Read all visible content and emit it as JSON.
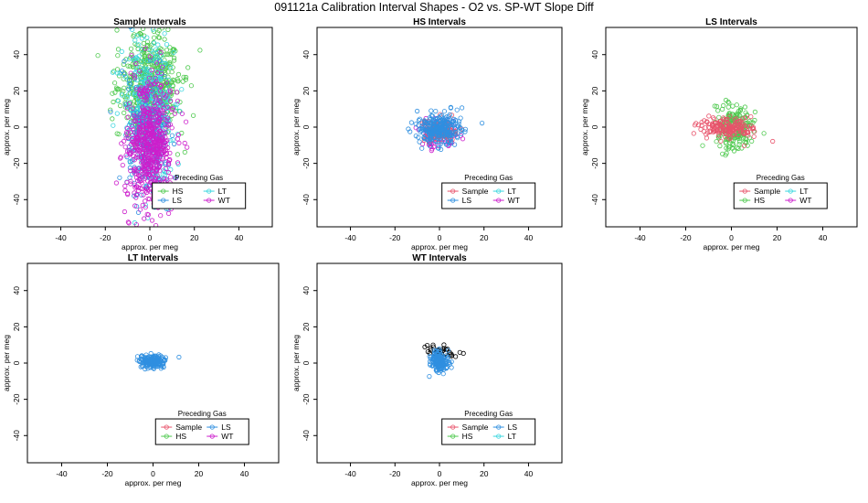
{
  "figure": {
    "title": "091121a   Calibration Interval Shapes - O2 vs. SP-WT Slope Diff"
  },
  "colors": {
    "Sample": "#e8536b",
    "HS": "#4ec94e",
    "LS": "#2f8fe0",
    "LT": "#3ad6df",
    "WT": "#cc1fcc",
    "axis": "#000000"
  },
  "chart_data": [
    {
      "type": "scatter",
      "title": "Sample Intervals",
      "xlabel": "approx. per meg",
      "ylabel": "approx. per meg",
      "xlim": [
        -55,
        55
      ],
      "ylim": [
        -55,
        55
      ],
      "xticks": [
        -40,
        -20,
        0,
        20,
        40
      ],
      "yticks": [
        -40,
        -20,
        0,
        20,
        40
      ],
      "legend": {
        "title": "Preceding Gas",
        "placement": "bottom-right",
        "entries": [
          "HS",
          "LT",
          "LS",
          "WT"
        ]
      },
      "series": [
        {
          "name": "HS",
          "color_key": "HS",
          "n": 520,
          "center": [
            0,
            22
          ],
          "spread": [
            7,
            14
          ],
          "ymax": 55
        },
        {
          "name": "LT",
          "color_key": "LT",
          "n": 380,
          "center": [
            0,
            8
          ],
          "spread": [
            6,
            18
          ]
        },
        {
          "name": "LS",
          "color_key": "LS",
          "n": 200,
          "center": [
            -1,
            -8
          ],
          "spread": [
            5,
            18
          ]
        },
        {
          "name": "WT",
          "color_key": "WT",
          "n": 620,
          "center": [
            0,
            -10
          ],
          "spread": [
            5,
            18
          ],
          "ymin": -55
        }
      ]
    },
    {
      "type": "scatter",
      "title": "HS Intervals",
      "xlabel": "approx. per meg",
      "ylabel": "approx. per meg",
      "xlim": [
        -55,
        55
      ],
      "ylim": [
        -55,
        55
      ],
      "xticks": [
        -40,
        -20,
        0,
        20,
        40
      ],
      "yticks": [
        -40,
        -20,
        0,
        20,
        40
      ],
      "legend": {
        "title": "Preceding Gas",
        "placement": "bottom-right",
        "entries": [
          "Sample",
          "LT",
          "LS",
          "WT"
        ]
      },
      "series": [
        {
          "name": "WT",
          "color_key": "WT",
          "n": 90,
          "center": [
            0,
            -4
          ],
          "spread": [
            4,
            3.5
          ]
        },
        {
          "name": "Sample",
          "color_key": "Sample",
          "n": 130,
          "center": [
            0,
            -2
          ],
          "spread": [
            4,
            3.5
          ]
        },
        {
          "name": "LS",
          "color_key": "LS",
          "n": 260,
          "center": [
            0,
            -1
          ],
          "spread": [
            5,
            4
          ]
        }
      ]
    },
    {
      "type": "scatter",
      "title": "LS Intervals",
      "xlabel": "approx. per meg",
      "ylabel": "approx. per meg",
      "xlim": [
        -55,
        55
      ],
      "ylim": [
        -55,
        55
      ],
      "xticks": [
        -40,
        -20,
        0,
        20,
        40
      ],
      "yticks": [
        -40,
        -20,
        0,
        20,
        40
      ],
      "legend": {
        "title": "Preceding Gas",
        "placement": "bottom-right",
        "entries": [
          "Sample",
          "LT",
          "HS",
          "WT"
        ]
      },
      "series": [
        {
          "name": "HS",
          "color_key": "HS",
          "n": 200,
          "center": [
            1,
            0
          ],
          "spread": [
            4,
            6
          ]
        },
        {
          "name": "Sample",
          "color_key": "Sample",
          "n": 160,
          "center": [
            -1,
            -1
          ],
          "spread": [
            6,
            3
          ]
        }
      ]
    },
    {
      "type": "scatter",
      "title": "LT Intervals",
      "xlabel": "approx. per meg",
      "ylabel": "approx. per meg",
      "xlim": [
        -55,
        55
      ],
      "ylim": [
        -55,
        55
      ],
      "xticks": [
        -40,
        -20,
        0,
        20,
        40
      ],
      "yticks": [
        -40,
        -20,
        0,
        20,
        40
      ],
      "legend": {
        "title": "Preceding Gas",
        "placement": "bottom-right",
        "entries": [
          "Sample",
          "LS",
          "HS",
          "WT"
        ]
      },
      "series": [
        {
          "name": "LS",
          "color_key": "LS",
          "n": 170,
          "center": [
            0,
            1
          ],
          "spread": [
            3,
            1.8
          ]
        }
      ]
    },
    {
      "type": "scatter",
      "title": "WT Intervals",
      "xlabel": "approx. per meg",
      "ylabel": "approx. per meg",
      "xlim": [
        -55,
        55
      ],
      "ylim": [
        -55,
        55
      ],
      "xticks": [
        -40,
        -20,
        0,
        20,
        40
      ],
      "yticks": [
        -40,
        -20,
        0,
        20,
        40
      ],
      "legend": {
        "title": "Preceding Gas",
        "placement": "bottom-right",
        "entries": [
          "Sample",
          "LS",
          "HS",
          "LT"
        ]
      },
      "series": [
        {
          "color_key": "axis",
          "n": 40,
          "center": [
            1,
            6
          ],
          "spread": [
            3.5,
            1.8
          ]
        },
        {
          "name": "LS",
          "color_key": "LS",
          "n": 150,
          "center": [
            0,
            1
          ],
          "spread": [
            2,
            3
          ]
        }
      ]
    }
  ]
}
